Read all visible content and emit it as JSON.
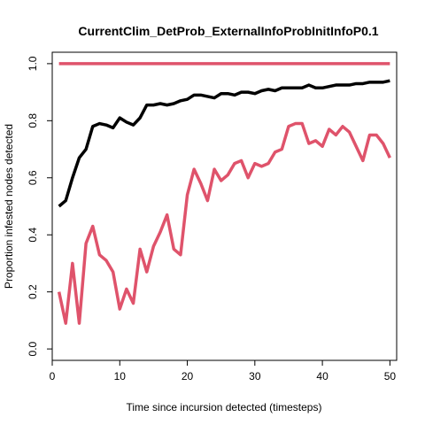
{
  "chart_data": {
    "type": "line",
    "title": "CurrentClim_DetProb_ExternalInfoProbInitInfoP0.1",
    "xlabel": "Time since incursion detected (timesteps)",
    "ylabel": "Proportion infested nodes detected",
    "xlim": [
      0,
      51
    ],
    "ylim": [
      -0.04,
      1.04
    ],
    "x_ticks": [
      0,
      10,
      20,
      30,
      40,
      50
    ],
    "x_tick_labels": [
      "0",
      "10",
      "20",
      "30",
      "40",
      "50"
    ],
    "y_ticks": [
      0,
      0.2,
      0.4,
      0.6,
      0.8,
      1
    ],
    "y_tick_labels": [
      "0.0",
      "0.2",
      "0.4",
      "0.6",
      "0.8",
      "1.0"
    ],
    "grid": false,
    "legend": "none",
    "x": [
      1,
      2,
      3,
      4,
      5,
      6,
      7,
      8,
      9,
      10,
      11,
      12,
      13,
      14,
      15,
      16,
      17,
      18,
      19,
      20,
      21,
      22,
      23,
      24,
      25,
      26,
      27,
      28,
      29,
      30,
      31,
      32,
      33,
      34,
      35,
      36,
      37,
      38,
      39,
      40,
      41,
      42,
      43,
      44,
      45,
      46,
      47,
      48,
      49,
      50
    ],
    "series": [
      {
        "color": "#000000",
        "values": [
          0.5,
          0.52,
          0.6,
          0.67,
          0.7,
          0.78,
          0.79,
          0.785,
          0.775,
          0.81,
          0.795,
          0.785,
          0.81,
          0.855,
          0.855,
          0.86,
          0.855,
          0.86,
          0.87,
          0.875,
          0.89,
          0.89,
          0.885,
          0.88,
          0.895,
          0.895,
          0.89,
          0.9,
          0.9,
          0.895,
          0.905,
          0.91,
          0.905,
          0.915,
          0.915,
          0.915,
          0.915,
          0.925,
          0.915,
          0.915,
          0.92,
          0.925,
          0.925,
          0.925,
          0.93,
          0.93,
          0.935,
          0.935,
          0.935,
          0.94
        ]
      },
      {
        "color": "#df536b",
        "values": [
          0.2,
          0.09,
          0.3,
          0.09,
          0.37,
          0.43,
          0.33,
          0.31,
          0.27,
          0.14,
          0.21,
          0.16,
          0.35,
          0.27,
          0.36,
          0.41,
          0.47,
          0.35,
          0.33,
          0.54,
          0.63,
          0.58,
          0.52,
          0.63,
          0.59,
          0.61,
          0.65,
          0.66,
          0.6,
          0.65,
          0.64,
          0.65,
          0.69,
          0.7,
          0.78,
          0.79,
          0.79,
          0.72,
          0.73,
          0.71,
          0.77,
          0.75,
          0.78,
          0.76,
          0.71,
          0.66,
          0.75,
          0.75,
          0.72,
          0.67
        ]
      },
      {
        "color": "#df536b",
        "values": [
          1,
          1,
          1,
          1,
          1,
          1,
          1,
          1,
          1,
          1,
          1,
          1,
          1,
          1,
          1,
          1,
          1,
          1,
          1,
          1,
          1,
          1,
          1,
          1,
          1,
          1,
          1,
          1,
          1,
          1,
          1,
          1,
          1,
          1,
          1,
          1,
          1,
          1,
          1,
          1,
          1,
          1,
          1,
          1,
          1,
          1,
          1,
          1,
          1,
          1
        ]
      }
    ]
  }
}
